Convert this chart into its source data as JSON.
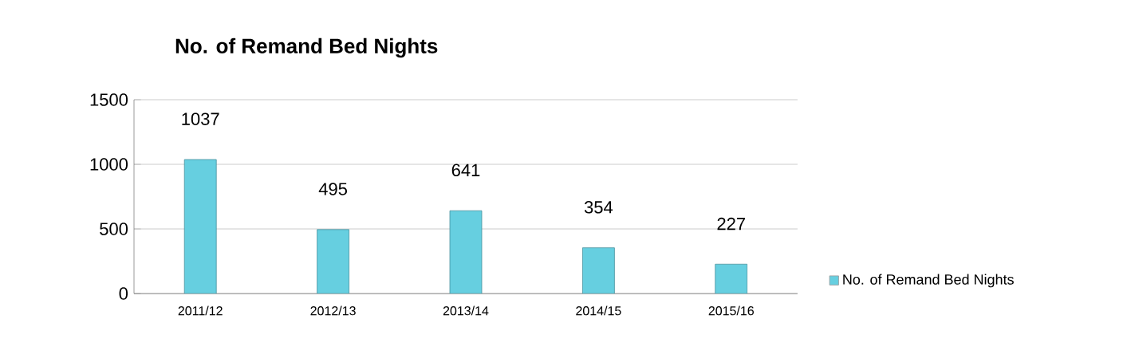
{
  "chart_data": {
    "type": "bar",
    "title": "No. of Remand Bed Nights",
    "categories": [
      "2011/12",
      "2012/13",
      "2013/14",
      "2014/15",
      "2015/16"
    ],
    "series": [
      {
        "name": "No. of Remand Bed Nights",
        "color": "#66cfe0",
        "values": [
          1037,
          495,
          641,
          354,
          227
        ]
      }
    ],
    "ylim": [
      0,
      1500
    ],
    "yticks": [
      0,
      500,
      1000,
      1500
    ],
    "grid": "y",
    "legend": "bottom right",
    "data_labels": true
  }
}
